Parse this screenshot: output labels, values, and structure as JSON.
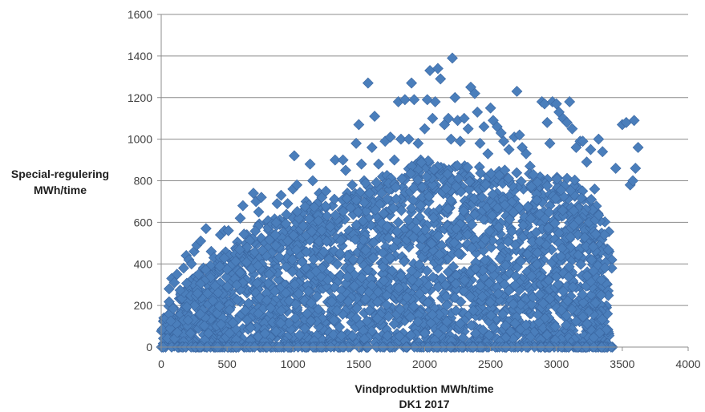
{
  "chart_data": {
    "type": "scatter",
    "xlabel": "Vindproduktion  MWh/time",
    "xlabel_line2": "DK1 2017",
    "ylabel_line1": "Special-regulering",
    "ylabel_line2": "MWh/time",
    "xlim": [
      0,
      4000
    ],
    "ylim": [
      0,
      1600
    ],
    "x_ticks": [
      0,
      500,
      1000,
      1500,
      2000,
      2500,
      3000,
      3500,
      4000
    ],
    "y_ticks": [
      0,
      200,
      400,
      600,
      800,
      1000,
      1200,
      1400,
      1600
    ],
    "x_tick_labels": [
      "0",
      "500",
      "1000",
      "1500",
      "2000",
      "2500",
      "3000",
      "3500",
      "4000"
    ],
    "y_tick_labels": [
      "0",
      "200",
      "400",
      "600",
      "800",
      "1000",
      "1200",
      "1400",
      "1600"
    ],
    "grid": "horizontal",
    "legend": "none",
    "marker": "diamond",
    "marker_color": "#4A7EBB",
    "marker_edge": "#3A66A0",
    "series": [
      {
        "values": [
          [
            20,
            140
          ],
          [
            40,
            120
          ],
          [
            60,
            280
          ],
          [
            80,
            330
          ],
          [
            100,
            310
          ],
          [
            120,
            350
          ],
          [
            150,
            260
          ],
          [
            170,
            380
          ],
          [
            190,
            440
          ],
          [
            210,
            420
          ],
          [
            230,
            400
          ],
          [
            250,
            460
          ],
          [
            270,
            490
          ],
          [
            300,
            510
          ],
          [
            320,
            380
          ],
          [
            340,
            570
          ],
          [
            360,
            300
          ],
          [
            380,
            460
          ],
          [
            400,
            430
          ],
          [
            420,
            360
          ],
          [
            450,
            540
          ],
          [
            480,
            560
          ],
          [
            510,
            560
          ],
          [
            540,
            330
          ],
          [
            560,
            380
          ],
          [
            600,
            620
          ],
          [
            620,
            680
          ],
          [
            650,
            540
          ],
          [
            700,
            740
          ],
          [
            720,
            700
          ],
          [
            740,
            650
          ],
          [
            760,
            720
          ],
          [
            780,
            380
          ],
          [
            800,
            600
          ],
          [
            820,
            580
          ],
          [
            850,
            420
          ],
          [
            880,
            690
          ],
          [
            910,
            730
          ],
          [
            930,
            600
          ],
          [
            960,
            690
          ],
          [
            1000,
            760
          ],
          [
            1010,
            920
          ],
          [
            1030,
            780
          ],
          [
            1050,
            560
          ],
          [
            1070,
            520
          ],
          [
            1100,
            700
          ],
          [
            1130,
            880
          ],
          [
            1150,
            800
          ],
          [
            1170,
            640
          ],
          [
            1200,
            740
          ],
          [
            1220,
            720
          ],
          [
            1250,
            750
          ],
          [
            1270,
            560
          ],
          [
            1300,
            680
          ],
          [
            1320,
            900
          ],
          [
            1350,
            600
          ],
          [
            1380,
            900
          ],
          [
            1400,
            850
          ],
          [
            1420,
            720
          ],
          [
            1450,
            780
          ],
          [
            1480,
            980
          ],
          [
            1500,
            1070
          ],
          [
            1520,
            880
          ],
          [
            1540,
            800
          ],
          [
            1570,
            1270
          ],
          [
            1600,
            960
          ],
          [
            1620,
            1110
          ],
          [
            1650,
            880
          ],
          [
            1680,
            820
          ],
          [
            1700,
            990
          ],
          [
            1740,
            1010
          ],
          [
            1770,
            900
          ],
          [
            1800,
            1180
          ],
          [
            1820,
            1000
          ],
          [
            1850,
            1190
          ],
          [
            1880,
            1000
          ],
          [
            1900,
            1270
          ],
          [
            1920,
            1190
          ],
          [
            1950,
            980
          ],
          [
            1970,
            900
          ],
          [
            2000,
            1050
          ],
          [
            2020,
            1190
          ],
          [
            2040,
            1330
          ],
          [
            2060,
            1100
          ],
          [
            2080,
            1180
          ],
          [
            2100,
            1340
          ],
          [
            2120,
            1290
          ],
          [
            2150,
            1070
          ],
          [
            2180,
            1100
          ],
          [
            2200,
            1000
          ],
          [
            2210,
            1390
          ],
          [
            2230,
            1200
          ],
          [
            2250,
            1090
          ],
          [
            2270,
            990
          ],
          [
            2300,
            1100
          ],
          [
            2330,
            1050
          ],
          [
            2350,
            1250
          ],
          [
            2380,
            1220
          ],
          [
            2400,
            1130
          ],
          [
            2420,
            980
          ],
          [
            2450,
            1060
          ],
          [
            2480,
            930
          ],
          [
            2500,
            1150
          ],
          [
            2520,
            1090
          ],
          [
            2550,
            1060
          ],
          [
            2580,
            1030
          ],
          [
            2600,
            990
          ],
          [
            2640,
            950
          ],
          [
            2680,
            1010
          ],
          [
            2700,
            1230
          ],
          [
            2720,
            1020
          ],
          [
            2740,
            960
          ],
          [
            2770,
            930
          ],
          [
            2800,
            870
          ],
          [
            2830,
            820
          ],
          [
            2860,
            760
          ],
          [
            2890,
            1180
          ],
          [
            2910,
            1170
          ],
          [
            2930,
            1080
          ],
          [
            2950,
            980
          ],
          [
            2970,
            1180
          ],
          [
            3000,
            1170
          ],
          [
            3020,
            1130
          ],
          [
            3050,
            1100
          ],
          [
            3080,
            1080
          ],
          [
            3100,
            1180
          ],
          [
            3120,
            1050
          ],
          [
            3150,
            960
          ],
          [
            3180,
            990
          ],
          [
            3200,
            990
          ],
          [
            3230,
            890
          ],
          [
            3260,
            950
          ],
          [
            3290,
            760
          ],
          [
            3320,
            1000
          ],
          [
            3350,
            940
          ],
          [
            3400,
            460
          ],
          [
            3420,
            420
          ],
          [
            3450,
            860
          ],
          [
            3500,
            1070
          ],
          [
            3530,
            1080
          ],
          [
            3560,
            780
          ],
          [
            3580,
            800
          ],
          [
            3590,
            1090
          ],
          [
            3600,
            860
          ],
          [
            3620,
            960
          ],
          [
            3420,
            380
          ],
          [
            3380,
            190
          ],
          [
            3350,
            300
          ],
          [
            3300,
            620
          ],
          [
            3250,
            470
          ],
          [
            200,
            80
          ],
          [
            300,
            150
          ],
          [
            400,
            250
          ],
          [
            500,
            180
          ],
          [
            600,
            300
          ],
          [
            700,
            350
          ],
          [
            800,
            250
          ],
          [
            900,
            320
          ],
          [
            1000,
            400
          ],
          [
            1100,
            350
          ],
          [
            1200,
            300
          ],
          [
            1300,
            420
          ],
          [
            1400,
            380
          ],
          [
            1500,
            450
          ],
          [
            1600,
            500
          ],
          [
            1700,
            550
          ],
          [
            1800,
            600
          ],
          [
            1900,
            650
          ],
          [
            2000,
            700
          ],
          [
            2100,
            620
          ],
          [
            2200,
            580
          ],
          [
            2300,
            640
          ],
          [
            2400,
            700
          ],
          [
            2500,
            660
          ],
          [
            2600,
            720
          ],
          [
            2700,
            680
          ],
          [
            2800,
            640
          ],
          [
            2900,
            600
          ],
          [
            3000,
            560
          ],
          [
            3100,
            520
          ],
          [
            1550,
            650
          ],
          [
            1650,
            700
          ],
          [
            1750,
            760
          ],
          [
            1850,
            720
          ],
          [
            1950,
            780
          ],
          [
            2050,
            740
          ],
          [
            2150,
            800
          ],
          [
            2250,
            760
          ],
          [
            2350,
            720
          ],
          [
            2450,
            780
          ],
          [
            2550,
            740
          ],
          [
            2650,
            700
          ],
          [
            2750,
            760
          ],
          [
            2850,
            720
          ],
          [
            2950,
            680
          ],
          [
            3050,
            640
          ],
          [
            3150,
            600
          ],
          [
            3250,
            560
          ],
          [
            2000,
            430
          ],
          [
            2100,
            380
          ],
          [
            2200,
            330
          ],
          [
            2300,
            280
          ],
          [
            2400,
            230
          ],
          [
            2500,
            300
          ],
          [
            2600,
            350
          ],
          [
            2700,
            400
          ],
          [
            2800,
            450
          ],
          [
            2900,
            420
          ],
          [
            3000,
            380
          ],
          [
            3100,
            340
          ],
          [
            1200,
            160
          ],
          [
            1300,
            200
          ],
          [
            1400,
            240
          ],
          [
            1500,
            280
          ],
          [
            1600,
            320
          ],
          [
            1700,
            360
          ],
          [
            1800,
            300
          ],
          [
            1900,
            260
          ],
          [
            2000,
            220
          ],
          [
            2100,
            180
          ],
          [
            2200,
            140
          ],
          [
            2300,
            100
          ],
          [
            2400,
            60
          ],
          [
            2500,
            120
          ],
          [
            2600,
            170
          ],
          [
            2700,
            210
          ],
          [
            2800,
            160
          ],
          [
            2900,
            110
          ],
          [
            3000,
            70
          ],
          [
            3100,
            120
          ],
          [
            3200,
            170
          ],
          [
            3300,
            220
          ],
          [
            3350,
            120
          ],
          [
            3280,
            80
          ],
          [
            3180,
            40
          ],
          [
            400,
            380
          ],
          [
            550,
            420
          ],
          [
            650,
            460
          ],
          [
            750,
            400
          ],
          [
            850,
            460
          ]
        ]
      }
    ]
  }
}
